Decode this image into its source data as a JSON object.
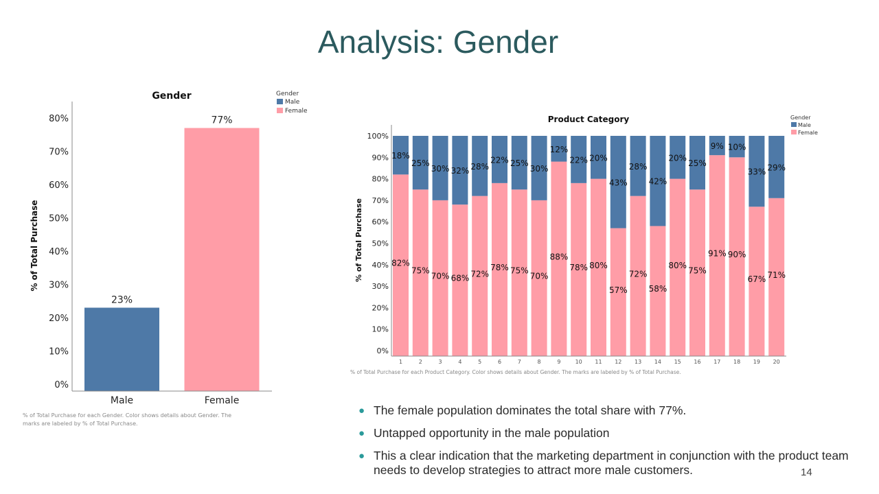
{
  "slide": {
    "title": "Analysis: Gender",
    "page_number": "14",
    "bullets": [
      "The female population dominates the total share with 77%.",
      "Untapped opportunity in the male population",
      "This a clear indication that the marketing department in conjunction with the product team needs to develop strategies to attract more male customers."
    ]
  },
  "colors": {
    "male": "#4e79a7",
    "female": "#ff9da7",
    "title": "#2b5a5e"
  },
  "chart_data": [
    {
      "type": "bar",
      "title": "Gender",
      "xlabel": "",
      "ylabel": "% of Total Purchase",
      "categories": [
        "Male",
        "Female"
      ],
      "values": [
        23,
        77
      ],
      "value_labels": [
        "23%",
        "77%"
      ],
      "ylim": [
        0,
        80
      ],
      "yticks": [
        "0%",
        "10%",
        "20%",
        "30%",
        "40%",
        "50%",
        "60%",
        "70%",
        "80%"
      ],
      "legend": {
        "title": "Gender",
        "entries": [
          "Male",
          "Female"
        ]
      },
      "caption": "% of Total Purchase for each Gender.  Color shows details about Gender.  The marks are labeled by % of Total Purchase."
    },
    {
      "type": "bar",
      "stacked": true,
      "title": "Product Category",
      "xlabel": "",
      "ylabel": "% of Total Purchase",
      "categories": [
        "1",
        "2",
        "3",
        "4",
        "5",
        "6",
        "7",
        "8",
        "9",
        "10",
        "11",
        "12",
        "13",
        "14",
        "15",
        "16",
        "17",
        "18",
        "19",
        "20"
      ],
      "series": [
        {
          "name": "Female",
          "values": [
            82,
            75,
            70,
            68,
            72,
            78,
            75,
            70,
            88,
            78,
            80,
            57,
            72,
            58,
            80,
            75,
            91,
            90,
            67,
            71
          ]
        },
        {
          "name": "Male",
          "values": [
            18,
            25,
            30,
            32,
            28,
            22,
            25,
            30,
            12,
            22,
            20,
            43,
            28,
            42,
            20,
            25,
            9,
            10,
            33,
            29
          ]
        }
      ],
      "ylim": [
        0,
        100
      ],
      "yticks": [
        "0%",
        "10%",
        "20%",
        "30%",
        "40%",
        "50%",
        "60%",
        "70%",
        "80%",
        "90%",
        "100%"
      ],
      "legend": {
        "title": "Gender",
        "entries": [
          "Male",
          "Female"
        ]
      },
      "caption": "% of Total Purchase for each Product Category.  Color shows details about Gender.  The marks are labeled by % of Total Purchase."
    }
  ]
}
